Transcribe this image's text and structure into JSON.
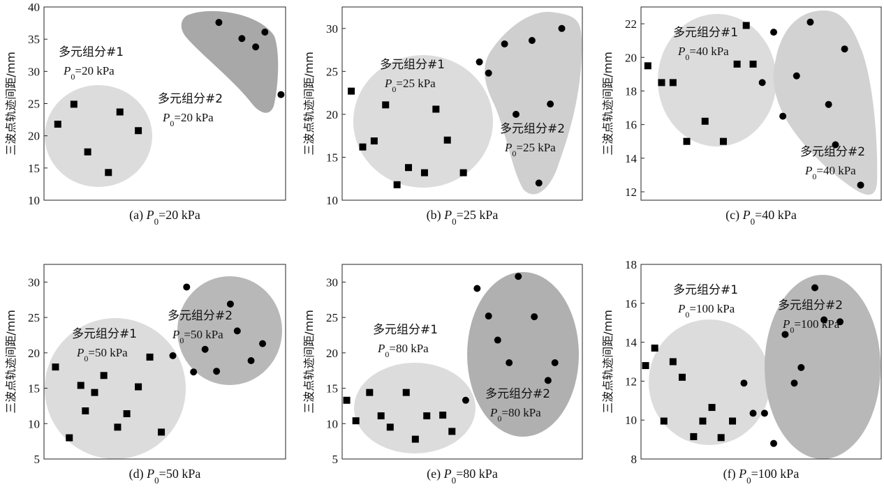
{
  "chart_data": [
    {
      "type": "scatter",
      "caption": {
        "prefix": "(a) ",
        "var": "P",
        "sub": "0",
        "suffix": "=20 kPa"
      },
      "ylabel": "三波点轨迹间距/mm",
      "ylim": [
        10,
        40
      ],
      "yticks": [
        "10",
        "15",
        "20",
        "25",
        "30",
        "35",
        "40"
      ],
      "series": [
        {
          "name": "多元组分#1",
          "marker": "square",
          "points": [
            [
              0.6,
              21.8
            ],
            [
              1.3,
              24.9
            ],
            [
              1.9,
              17.5
            ],
            [
              2.8,
              14.3
            ],
            [
              3.3,
              23.7
            ],
            [
              4.1,
              20.8
            ]
          ]
        },
        {
          "name": "多元组分#2",
          "marker": "circle",
          "points": [
            [
              7.6,
              37.6
            ],
            [
              8.6,
              35.1
            ],
            [
              9.2,
              33.8
            ],
            [
              9.6,
              36.1
            ],
            [
              10.3,
              26.4
            ]
          ]
        }
      ],
      "annotations": [
        {
          "name": "多元组分#1",
          "pressure": "=20 kPa"
        },
        {
          "name": "多元组分#2",
          "pressure": "=20 kPa"
        }
      ]
    },
    {
      "type": "scatter",
      "caption": {
        "prefix": "(b) ",
        "var": "P",
        "sub": "0",
        "suffix": "=25 kPa"
      },
      "ylabel": "三波点轨迹间距/mm",
      "ylim": [
        10,
        32.5
      ],
      "yticks": [
        "10",
        "15",
        "20",
        "25",
        "30"
      ],
      "series": [
        {
          "name": "多元组分#1",
          "marker": "square",
          "points": [
            [
              0.4,
              22.7
            ],
            [
              0.9,
              16.2
            ],
            [
              1.4,
              16.9
            ],
            [
              1.9,
              21.1
            ],
            [
              2.4,
              11.8
            ],
            [
              2.9,
              13.8
            ],
            [
              3.6,
              13.2
            ],
            [
              4.1,
              20.6
            ],
            [
              4.6,
              17.0
            ],
            [
              5.3,
              13.2
            ]
          ]
        },
        {
          "name": "多元组分#2",
          "marker": "circle",
          "points": [
            [
              6.0,
              26.1
            ],
            [
              6.4,
              24.8
            ],
            [
              7.1,
              28.2
            ],
            [
              7.6,
              20.0
            ],
            [
              8.3,
              28.6
            ],
            [
              9.1,
              21.2
            ],
            [
              9.6,
              30.0
            ],
            [
              8.6,
              12.0
            ]
          ]
        }
      ],
      "annotations": [
        {
          "name": "多元组分#1",
          "pressure": "=25 kPa"
        },
        {
          "name": "多元组分#2",
          "pressure": "=25 kPa"
        }
      ]
    },
    {
      "type": "scatter",
      "caption": {
        "prefix": "(c) ",
        "var": "P",
        "sub": "0",
        "suffix": "=40 kPa"
      },
      "ylabel": "三波点轨迹间距/mm",
      "ylim": [
        11.5,
        23
      ],
      "yticks": [
        "12",
        "14",
        "16",
        "18",
        "20",
        "22"
      ],
      "series": [
        {
          "name": "多元组分#1",
          "marker": "square",
          "points": [
            [
              0.3,
              19.5
            ],
            [
              0.9,
              18.5
            ],
            [
              1.4,
              18.5
            ],
            [
              2.0,
              15.0
            ],
            [
              2.8,
              16.2
            ],
            [
              3.6,
              15.0
            ],
            [
              4.2,
              19.6
            ],
            [
              4.6,
              21.9
            ],
            [
              4.9,
              19.6
            ]
          ]
        },
        {
          "name": "多元组分#2",
          "marker": "circle",
          "points": [
            [
              5.3,
              18.5
            ],
            [
              5.8,
              21.5
            ],
            [
              6.2,
              16.5
            ],
            [
              6.8,
              18.9
            ],
            [
              7.4,
              22.1
            ],
            [
              8.2,
              17.2
            ],
            [
              8.5,
              14.8
            ],
            [
              8.9,
              20.5
            ],
            [
              9.6,
              12.4
            ]
          ]
        }
      ],
      "annotations": [
        {
          "name": "多元组分#1",
          "pressure": "=40 kPa"
        },
        {
          "name": "多元组分#2",
          "pressure": "=40 kPa"
        }
      ]
    },
    {
      "type": "scatter",
      "caption": {
        "prefix": "(d) ",
        "var": "P",
        "sub": "0",
        "suffix": "=50 kPa"
      },
      "ylabel": "三波点轨迹间距/mm",
      "ylim": [
        5,
        32.5
      ],
      "yticks": [
        "5",
        "10",
        "15",
        "20",
        "25",
        "30"
      ],
      "series": [
        {
          "name": "多元组分#1",
          "marker": "square",
          "points": [
            [
              0.5,
              18.0
            ],
            [
              1.1,
              8.0
            ],
            [
              1.6,
              15.4
            ],
            [
              1.8,
              11.8
            ],
            [
              2.2,
              14.4
            ],
            [
              2.6,
              16.8
            ],
            [
              3.2,
              9.5
            ],
            [
              3.6,
              11.4
            ],
            [
              4.1,
              15.2
            ],
            [
              4.6,
              19.4
            ],
            [
              5.1,
              8.8
            ]
          ]
        },
        {
          "name": "多元组分#2",
          "marker": "circle",
          "points": [
            [
              5.6,
              19.6
            ],
            [
              6.2,
              29.3
            ],
            [
              6.5,
              17.3
            ],
            [
              7.0,
              20.5
            ],
            [
              7.5,
              17.4
            ],
            [
              8.1,
              26.9
            ],
            [
              8.4,
              23.1
            ],
            [
              9.0,
              18.9
            ],
            [
              9.5,
              21.3
            ]
          ]
        }
      ],
      "annotations": [
        {
          "name": "多元组分#1",
          "pressure": "=50 kPa"
        },
        {
          "name": "多元组分#2",
          "pressure": "=50 kPa"
        }
      ]
    },
    {
      "type": "scatter",
      "caption": {
        "prefix": "(e) ",
        "var": "P",
        "sub": "0",
        "suffix": "=80 kPa"
      },
      "ylabel": "三波点轨迹间距/mm",
      "ylim": [
        5,
        32.5
      ],
      "yticks": [
        "5",
        "10",
        "15",
        "20",
        "25",
        "30"
      ],
      "series": [
        {
          "name": "多元组分#1",
          "marker": "square",
          "points": [
            [
              0.2,
              13.3
            ],
            [
              0.6,
              10.4
            ],
            [
              1.2,
              14.4
            ],
            [
              1.7,
              11.1
            ],
            [
              2.1,
              9.5
            ],
            [
              2.8,
              14.4
            ],
            [
              3.2,
              7.8
            ],
            [
              3.7,
              11.1
            ],
            [
              4.4,
              11.2
            ],
            [
              4.8,
              8.9
            ]
          ]
        },
        {
          "name": "多元组分#2",
          "marker": "circle",
          "points": [
            [
              5.4,
              13.3
            ],
            [
              5.9,
              29.1
            ],
            [
              6.4,
              25.2
            ],
            [
              6.8,
              21.8
            ],
            [
              7.3,
              18.6
            ],
            [
              7.7,
              30.8
            ],
            [
              8.4,
              25.1
            ],
            [
              9.0,
              16.1
            ],
            [
              9.3,
              18.6
            ]
          ]
        }
      ],
      "annotations": [
        {
          "name": "多元组分#1",
          "pressure": "=80 kPa"
        },
        {
          "name": "多元组分#2",
          "pressure": "=80 kPa"
        }
      ]
    },
    {
      "type": "scatter",
      "caption": {
        "prefix": "(f) ",
        "var": "P",
        "sub": "0",
        "suffix": "=100 kPa"
      },
      "ylabel": "三波点轨迹间距/mm",
      "ylim": [
        8,
        18
      ],
      "yticks": [
        "8",
        "10",
        "12",
        "14",
        "16",
        "18"
      ],
      "series": [
        {
          "name": "多元组分#1",
          "marker": "square",
          "points": [
            [
              0.2,
              12.8
            ],
            [
              0.6,
              13.7
            ],
            [
              1.0,
              9.95
            ],
            [
              1.4,
              13.0
            ],
            [
              1.8,
              12.2
            ],
            [
              2.3,
              9.15
            ],
            [
              2.7,
              9.95
            ],
            [
              3.1,
              10.65
            ],
            [
              3.5,
              9.1
            ],
            [
              4.0,
              9.95
            ]
          ]
        },
        {
          "name": "多元组分#2",
          "marker": "circle",
          "points": [
            [
              4.5,
              11.9
            ],
            [
              4.9,
              10.35
            ],
            [
              5.4,
              10.35
            ],
            [
              5.8,
              8.8
            ],
            [
              6.3,
              14.4
            ],
            [
              6.7,
              11.9
            ],
            [
              7.0,
              12.7
            ],
            [
              7.6,
              16.8
            ],
            [
              8.0,
              15.15
            ],
            [
              8.7,
              15.05
            ]
          ]
        }
      ],
      "annotations": [
        {
          "name": "多元组分#1",
          "pressure": "=100 kPa"
        },
        {
          "name": "多元组分#2",
          "pressure": "=100 kPa"
        }
      ]
    }
  ]
}
